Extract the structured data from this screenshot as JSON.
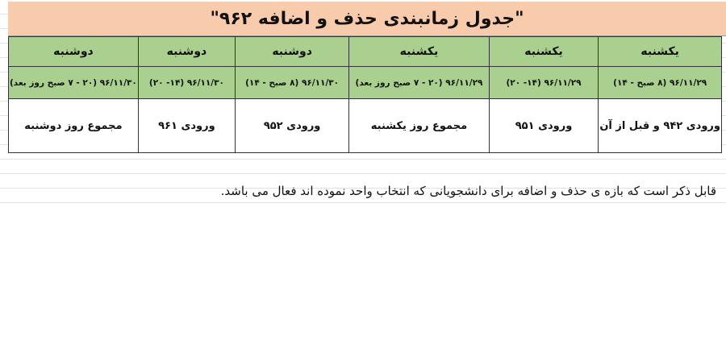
{
  "title": "\"جدول زمانبندی حذف و اضافه ۹۶۲\"",
  "columns": [
    {
      "day": "یکشنبه",
      "time": "۹۶/۱۱/۲۹ (۸ صبح - ۱۴)",
      "group": "ورودی ۹۴۲ و قبل از آن"
    },
    {
      "day": "یکشنبه",
      "time": "۹۶/۱۱/۲۹ (۱۴- ۲۰)",
      "group": "ورودی ۹۵۱"
    },
    {
      "day": "یکشنبه",
      "time": "۹۶/۱۱/۲۹ (۲۰ - ۷ صبح روز بعد)",
      "group": "مجموع روز یکشنبه"
    },
    {
      "day": "دوشنبه",
      "time": "۹۶/۱۱/۳۰ (۸ صبح - ۱۴)",
      "group": "ورودی ۹۵۲"
    },
    {
      "day": "دوشنبه",
      "time": "۹۶/۱۱/۳۰ (۱۴- ۲۰)",
      "group": "ورودی ۹۶۱"
    },
    {
      "day": "دوشنبه",
      "time": "۹۶/۱۱/۳۰ (۲۰ - ۷ صبح روز بعد)",
      "group": "مجموع روز دوشنبه"
    }
  ],
  "note": "قابل ذکر است که بازه ی حذف و اضافه برای دانشجویانی که انتخاب واحد نموده اند فعال می باشد.",
  "colors": {
    "title_bg": "#f8cbad",
    "header_bg": "#a9d08e"
  }
}
